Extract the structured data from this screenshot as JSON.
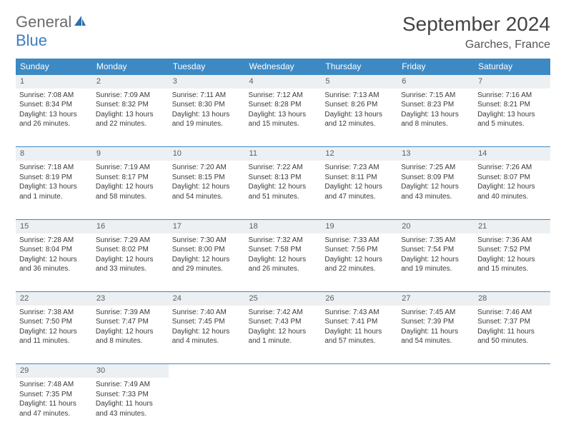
{
  "logo": {
    "word1": "General",
    "word2": "Blue",
    "icon_color": "#2f6fb0"
  },
  "title": "September 2024",
  "location": "Garches, France",
  "colors": {
    "header_bg": "#3d89c4",
    "header_text": "#ffffff",
    "daynum_bg": "#edf0f2",
    "border": "#3d89c4",
    "text": "#3a3a3a"
  },
  "weekdays": [
    "Sunday",
    "Monday",
    "Tuesday",
    "Wednesday",
    "Thursday",
    "Friday",
    "Saturday"
  ],
  "days": [
    {
      "n": 1,
      "sr": "7:08 AM",
      "ss": "8:34 PM",
      "dl": "13 hours and 26 minutes."
    },
    {
      "n": 2,
      "sr": "7:09 AM",
      "ss": "8:32 PM",
      "dl": "13 hours and 22 minutes."
    },
    {
      "n": 3,
      "sr": "7:11 AM",
      "ss": "8:30 PM",
      "dl": "13 hours and 19 minutes."
    },
    {
      "n": 4,
      "sr": "7:12 AM",
      "ss": "8:28 PM",
      "dl": "13 hours and 15 minutes."
    },
    {
      "n": 5,
      "sr": "7:13 AM",
      "ss": "8:26 PM",
      "dl": "13 hours and 12 minutes."
    },
    {
      "n": 6,
      "sr": "7:15 AM",
      "ss": "8:23 PM",
      "dl": "13 hours and 8 minutes."
    },
    {
      "n": 7,
      "sr": "7:16 AM",
      "ss": "8:21 PM",
      "dl": "13 hours and 5 minutes."
    },
    {
      "n": 8,
      "sr": "7:18 AM",
      "ss": "8:19 PM",
      "dl": "13 hours and 1 minute."
    },
    {
      "n": 9,
      "sr": "7:19 AM",
      "ss": "8:17 PM",
      "dl": "12 hours and 58 minutes."
    },
    {
      "n": 10,
      "sr": "7:20 AM",
      "ss": "8:15 PM",
      "dl": "12 hours and 54 minutes."
    },
    {
      "n": 11,
      "sr": "7:22 AM",
      "ss": "8:13 PM",
      "dl": "12 hours and 51 minutes."
    },
    {
      "n": 12,
      "sr": "7:23 AM",
      "ss": "8:11 PM",
      "dl": "12 hours and 47 minutes."
    },
    {
      "n": 13,
      "sr": "7:25 AM",
      "ss": "8:09 PM",
      "dl": "12 hours and 43 minutes."
    },
    {
      "n": 14,
      "sr": "7:26 AM",
      "ss": "8:07 PM",
      "dl": "12 hours and 40 minutes."
    },
    {
      "n": 15,
      "sr": "7:28 AM",
      "ss": "8:04 PM",
      "dl": "12 hours and 36 minutes."
    },
    {
      "n": 16,
      "sr": "7:29 AM",
      "ss": "8:02 PM",
      "dl": "12 hours and 33 minutes."
    },
    {
      "n": 17,
      "sr": "7:30 AM",
      "ss": "8:00 PM",
      "dl": "12 hours and 29 minutes."
    },
    {
      "n": 18,
      "sr": "7:32 AM",
      "ss": "7:58 PM",
      "dl": "12 hours and 26 minutes."
    },
    {
      "n": 19,
      "sr": "7:33 AM",
      "ss": "7:56 PM",
      "dl": "12 hours and 22 minutes."
    },
    {
      "n": 20,
      "sr": "7:35 AM",
      "ss": "7:54 PM",
      "dl": "12 hours and 19 minutes."
    },
    {
      "n": 21,
      "sr": "7:36 AM",
      "ss": "7:52 PM",
      "dl": "12 hours and 15 minutes."
    },
    {
      "n": 22,
      "sr": "7:38 AM",
      "ss": "7:50 PM",
      "dl": "12 hours and 11 minutes."
    },
    {
      "n": 23,
      "sr": "7:39 AM",
      "ss": "7:47 PM",
      "dl": "12 hours and 8 minutes."
    },
    {
      "n": 24,
      "sr": "7:40 AM",
      "ss": "7:45 PM",
      "dl": "12 hours and 4 minutes."
    },
    {
      "n": 25,
      "sr": "7:42 AM",
      "ss": "7:43 PM",
      "dl": "12 hours and 1 minute."
    },
    {
      "n": 26,
      "sr": "7:43 AM",
      "ss": "7:41 PM",
      "dl": "11 hours and 57 minutes."
    },
    {
      "n": 27,
      "sr": "7:45 AM",
      "ss": "7:39 PM",
      "dl": "11 hours and 54 minutes."
    },
    {
      "n": 28,
      "sr": "7:46 AM",
      "ss": "7:37 PM",
      "dl": "11 hours and 50 minutes."
    },
    {
      "n": 29,
      "sr": "7:48 AM",
      "ss": "7:35 PM",
      "dl": "11 hours and 47 minutes."
    },
    {
      "n": 30,
      "sr": "7:49 AM",
      "ss": "7:33 PM",
      "dl": "11 hours and 43 minutes."
    }
  ],
  "labels": {
    "sunrise": "Sunrise:",
    "sunset": "Sunset:",
    "daylight": "Daylight:"
  }
}
